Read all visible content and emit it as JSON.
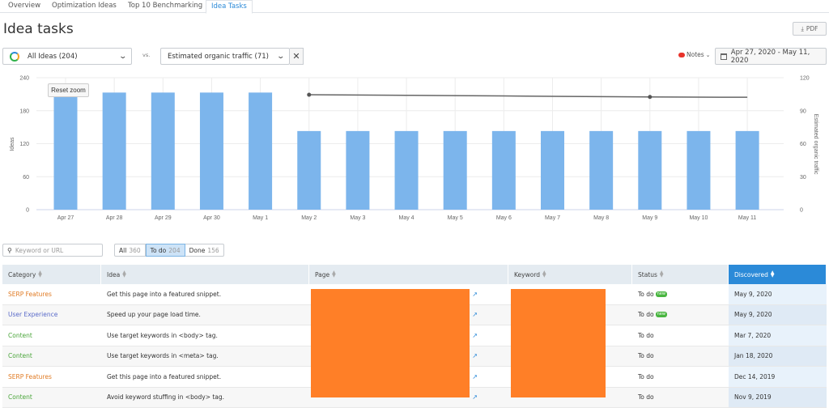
{
  "tabs": [
    {
      "label": "Overview",
      "active": false
    },
    {
      "label": "Optimization Ideas",
      "active": false
    },
    {
      "label": "Top 10 Benchmarking",
      "active": false
    },
    {
      "label": "Idea Tasks",
      "active": true
    }
  ],
  "header": {
    "title": "Idea tasks",
    "pdf_label": "PDF"
  },
  "controls": {
    "ideas_select": "All Ideas (204)",
    "vs_label": "vs.",
    "metric_select": "Estimated organic traffic (71)",
    "notes_label": "Notes",
    "date_range": "Apr 27, 2020 - May 11, 2020",
    "reset_zoom": "Reset zoom"
  },
  "chart_data": {
    "type": "bar",
    "title": "",
    "categories": [
      "Apr 27",
      "Apr 28",
      "Apr 29",
      "Apr 30",
      "May 1",
      "May 2",
      "May 3",
      "May 4",
      "May 5",
      "May 6",
      "May 7",
      "May 8",
      "May 9",
      "May 10",
      "May 11"
    ],
    "series": [
      {
        "name": "Ideas",
        "type": "bar",
        "axis": "left",
        "color": "#7cb5ec",
        "values": [
          213,
          213,
          213,
          213,
          213,
          143,
          143,
          143,
          143,
          143,
          143,
          143,
          143,
          143,
          143
        ]
      },
      {
        "name": "Estimated organic traffic",
        "type": "line",
        "axis": "right",
        "color": "#666666",
        "values": [
          null,
          null,
          null,
          null,
          null,
          104.5,
          104.3,
          104.0,
          103.7,
          103.4,
          103.1,
          102.8,
          102.5,
          102.3,
          102.2
        ],
        "markers": [
          "May 2",
          "May 9"
        ]
      }
    ],
    "ylabel": "Ideas",
    "y2label": "Estimated organic traffic",
    "ylim": [
      0,
      240
    ],
    "y2lim": [
      0,
      120
    ],
    "yticks": [
      0,
      60,
      120,
      180,
      240
    ],
    "y2ticks": [
      0,
      30,
      60,
      90,
      120
    ],
    "grid": true
  },
  "filters": {
    "search_placeholder": "Keyword or URL",
    "items": [
      {
        "label": "All",
        "count": "360",
        "active": false
      },
      {
        "label": "To do",
        "count": "204",
        "active": true
      },
      {
        "label": "Done",
        "count": "156",
        "active": false
      }
    ]
  },
  "table": {
    "columns": [
      "Category",
      "Idea",
      "Page",
      "Keyword",
      "Status",
      "Discovered"
    ],
    "rows": [
      {
        "category": "SERP Features",
        "cat_class": "serp",
        "idea": "Get this page into a featured snippet.",
        "status": "To do",
        "new": "new",
        "discovered": "May 9, 2020"
      },
      {
        "category": "User Experience",
        "cat_class": "ux",
        "idea": "Speed up your page load time.",
        "status": "To do",
        "new": "new",
        "discovered": "May 9, 2020"
      },
      {
        "category": "Content",
        "cat_class": "content",
        "idea": "Use target keywords in <body> tag.",
        "status": "To do",
        "new": "",
        "discovered": "Mar 7, 2020"
      },
      {
        "category": "Content",
        "cat_class": "content",
        "idea": "Use target keywords in <meta> tag.",
        "status": "To do",
        "new": "",
        "discovered": "Jan 18, 2020"
      },
      {
        "category": "SERP Features",
        "cat_class": "serp",
        "idea": "Get this page into a featured snippet.",
        "status": "To do",
        "new": "",
        "discovered": "Dec 14, 2019"
      },
      {
        "category": "Content",
        "cat_class": "content",
        "idea": "Avoid keyword stuffing in <body> tag.",
        "status": "To do",
        "new": "",
        "discovered": "Nov 9, 2019"
      }
    ]
  }
}
